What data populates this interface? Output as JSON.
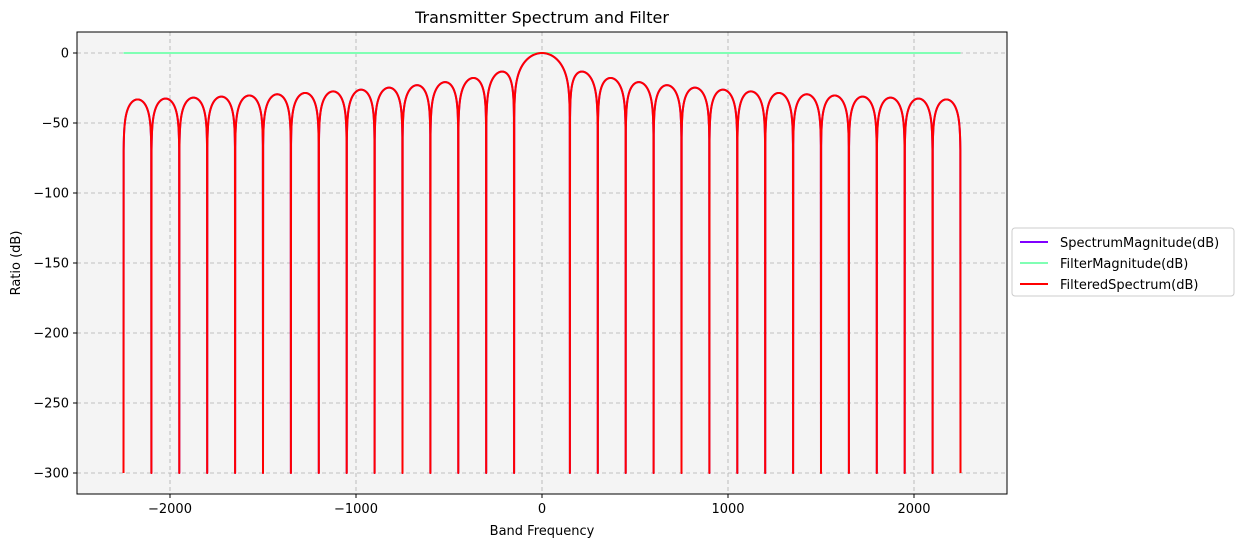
{
  "chart_data": {
    "type": "line",
    "title": "Transmitter Spectrum and Filter",
    "xlabel": "Band Frequency",
    "ylabel": "Ratio (dB)",
    "xlim": [
      -2500,
      2500
    ],
    "ylim": [
      -315,
      15
    ],
    "xticks": [
      -2000,
      -1000,
      0,
      1000,
      2000
    ],
    "xtick_labels": [
      "−2000",
      "−1000",
      "0",
      "1000",
      "2000"
    ],
    "yticks": [
      0,
      -50,
      -100,
      -150,
      -200,
      -250,
      -300
    ],
    "ytick_labels": [
      "0",
      "−50",
      "−100",
      "−150",
      "−200",
      "−250",
      "−300"
    ],
    "grid": true,
    "grid_style": "dashed",
    "plot_background": "#f4f4f4",
    "legend_position": "outside-right",
    "series": [
      {
        "name": "SpectrumMagnitude(dB)",
        "color": "#8000ff",
        "function": "sinc",
        "x_range": [
          -2250,
          2250
        ],
        "null_spacing": 150,
        "floor_db": -300,
        "peak_db": 0
      },
      {
        "name": "FilterMagnitude(dB)",
        "color": "#80ffb4",
        "function": "constant",
        "x_range": [
          -2250,
          2250
        ],
        "value": 0
      },
      {
        "name": "FilteredSpectrum(dB)",
        "color": "#ff0000",
        "function": "sinc",
        "x_range": [
          -2250,
          2250
        ],
        "null_spacing": 150,
        "floor_db": -300,
        "peak_db": 0
      }
    ]
  }
}
